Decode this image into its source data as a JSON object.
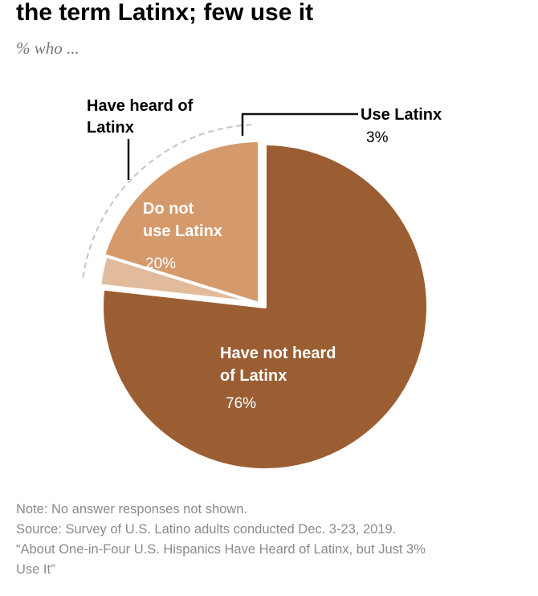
{
  "chart_data": {
    "type": "pie",
    "title": "the term Latinx; few use it",
    "subtitle": "% who ...",
    "slices": [
      {
        "label_lines": [
          "Have not heard",
          "of Latinx"
        ],
        "value": 76,
        "value_text": "76%",
        "color": "#9b5e33"
      },
      {
        "label_lines": [
          "Use Latinx"
        ],
        "value": 3,
        "value_text": "3%",
        "color": "#e2bb9c"
      },
      {
        "label_lines": [
          "Do not",
          "use Latinx"
        ],
        "value": 20,
        "value_text": "20%",
        "color": "#d59a6c"
      }
    ],
    "group_label_lines": [
      "Have heard of",
      "Latinx"
    ],
    "legend": "none"
  },
  "footnotes": {
    "note": "Note: No answer responses not shown.",
    "source": "Source: Survey of U.S. Latino adults conducted Dec. 3-23, 2019.",
    "report_line1": "“About One-in-Four U.S. Hispanics Have Heard of Latinx, but Just 3%",
    "report_line2": "Use It”"
  },
  "colors": {
    "separator": "#ffffff",
    "leader_line": "#111111",
    "group_arc": "#c4c4c4",
    "inner_label": "#ffffff",
    "outer_label": "#000000",
    "footnote_text": "#8a8a8a"
  }
}
